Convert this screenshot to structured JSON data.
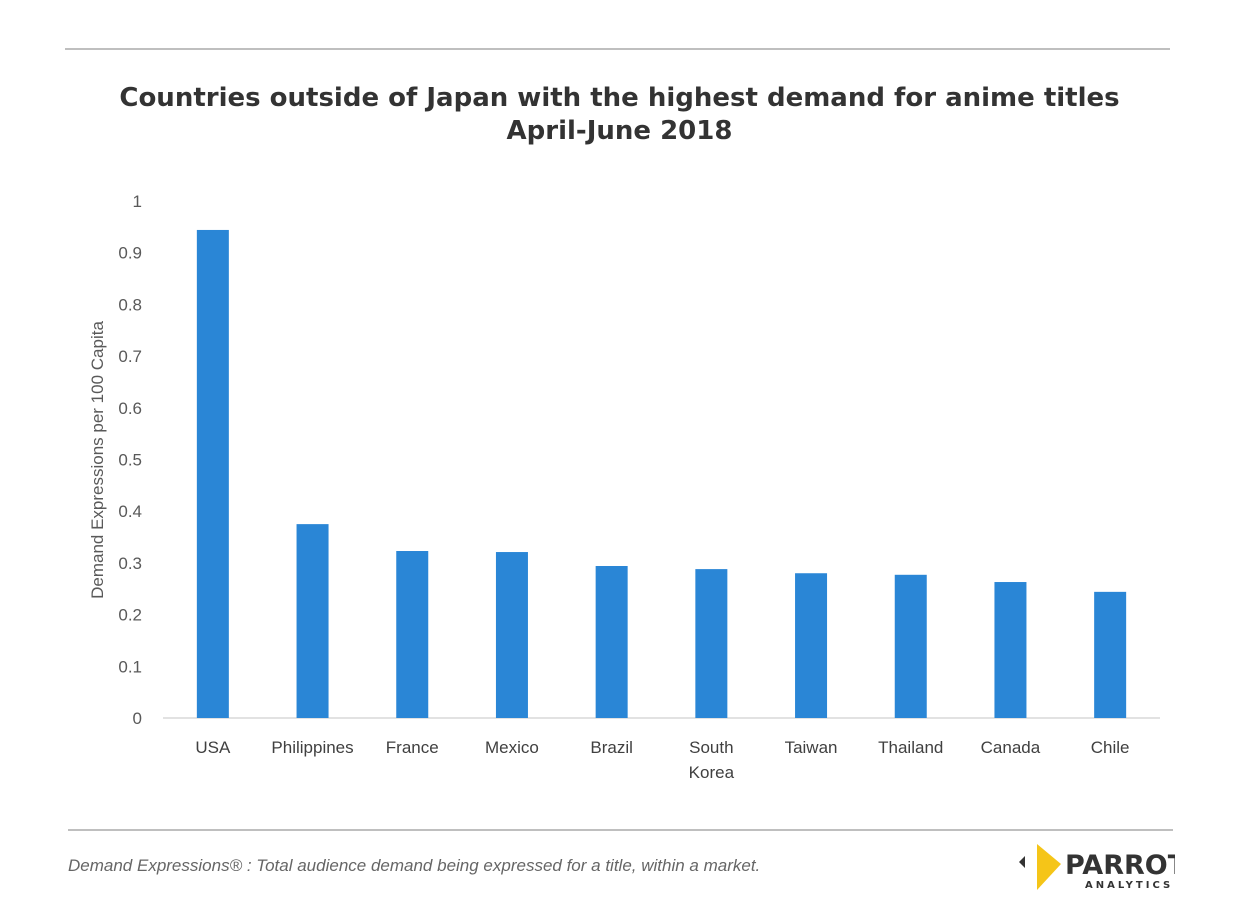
{
  "chart_data": {
    "type": "bar",
    "title": "Countries outside of Japan with the highest demand for anime titles",
    "subtitle": "April-June 2018",
    "xlabel": "",
    "ylabel": "Demand Expressions per 100 Capita",
    "categories": [
      "USA",
      "Philippines",
      "France",
      "Mexico",
      "Brazil",
      [
        "South",
        "Korea"
      ],
      "Taiwan",
      "Thailand",
      "Canada",
      "Chile"
    ],
    "values": [
      0.944,
      0.375,
      0.323,
      0.321,
      0.294,
      0.288,
      0.28,
      0.277,
      0.263,
      0.244
    ],
    "ylim": [
      0,
      1
    ],
    "yticks": [
      "0",
      "0.1",
      "0.2",
      "0.3",
      "0.4",
      "0.5",
      "0.6",
      "0.7",
      "0.8",
      "0.9",
      "1"
    ],
    "grid": false,
    "legend": "none",
    "bar_color": "#2a86d6"
  },
  "footer": {
    "footnote": "Demand Expressions® :  Total audience demand being expressed for a title, within a market.",
    "logo_text": "PARROT",
    "logo_subtext": "ANALYTICS"
  }
}
